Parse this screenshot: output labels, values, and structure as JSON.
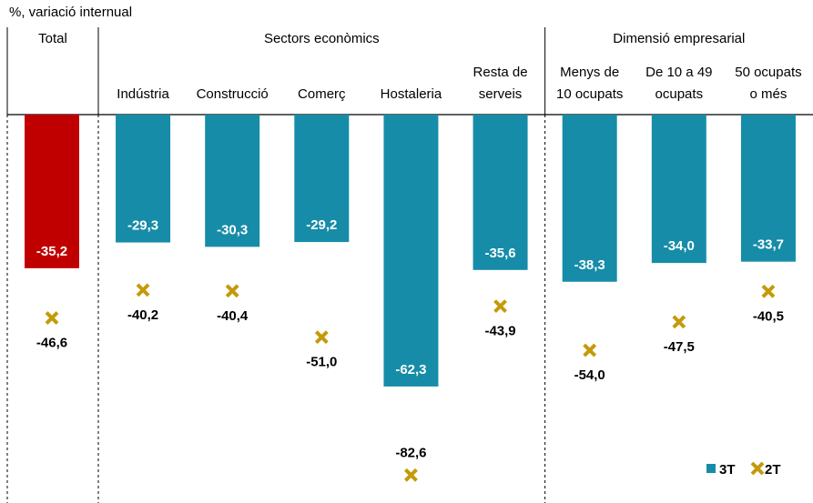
{
  "chart_data": {
    "type": "bar",
    "subtitle": "%, variació internual",
    "groups": [
      {
        "label": "Total",
        "from": 0,
        "to": 0
      },
      {
        "label": "Sectors econòmics",
        "from": 1,
        "to": 5
      },
      {
        "label": "Dimensió empresarial",
        "from": 6,
        "to": 8
      }
    ],
    "categories": [
      "Total",
      "Indústria",
      "Construcció",
      "Comerç",
      "Hostaleria",
      "Resta de\nserveis",
      "Menys de\n10 ocupats",
      "De 10 a 49\nocupats",
      "50 ocupats\no més"
    ],
    "ylim": [
      -89,
      0
    ],
    "series": [
      {
        "name": "3T",
        "color": "#168ca8",
        "colors": [
          "#c00000",
          "#168ca8",
          "#168ca8",
          "#168ca8",
          "#168ca8",
          "#168ca8",
          "#168ca8",
          "#168ca8",
          "#168ca8"
        ],
        "values": [
          -35.2,
          -29.3,
          -30.3,
          -29.2,
          -62.3,
          -35.6,
          -38.3,
          -34.0,
          -33.7
        ],
        "value_labels": [
          "-35,2",
          "-29,3",
          "-30,3",
          "-29,2",
          "-62,3",
          "-35,6",
          "-38,3",
          "-34,0",
          "-33,7"
        ]
      },
      {
        "name": "2T",
        "color": "#c49a0a",
        "values": [
          -46.6,
          -40.2,
          -40.4,
          -51.0,
          -82.6,
          -43.9,
          -54.0,
          -47.5,
          -40.5
        ],
        "value_labels": [
          "-46,6",
          "-40,2",
          "-40,4",
          "-51,0",
          "-82,6",
          "-43,9",
          "-54,0",
          "-47,5",
          "-40,5"
        ]
      }
    ],
    "legend": "bottom-right"
  }
}
